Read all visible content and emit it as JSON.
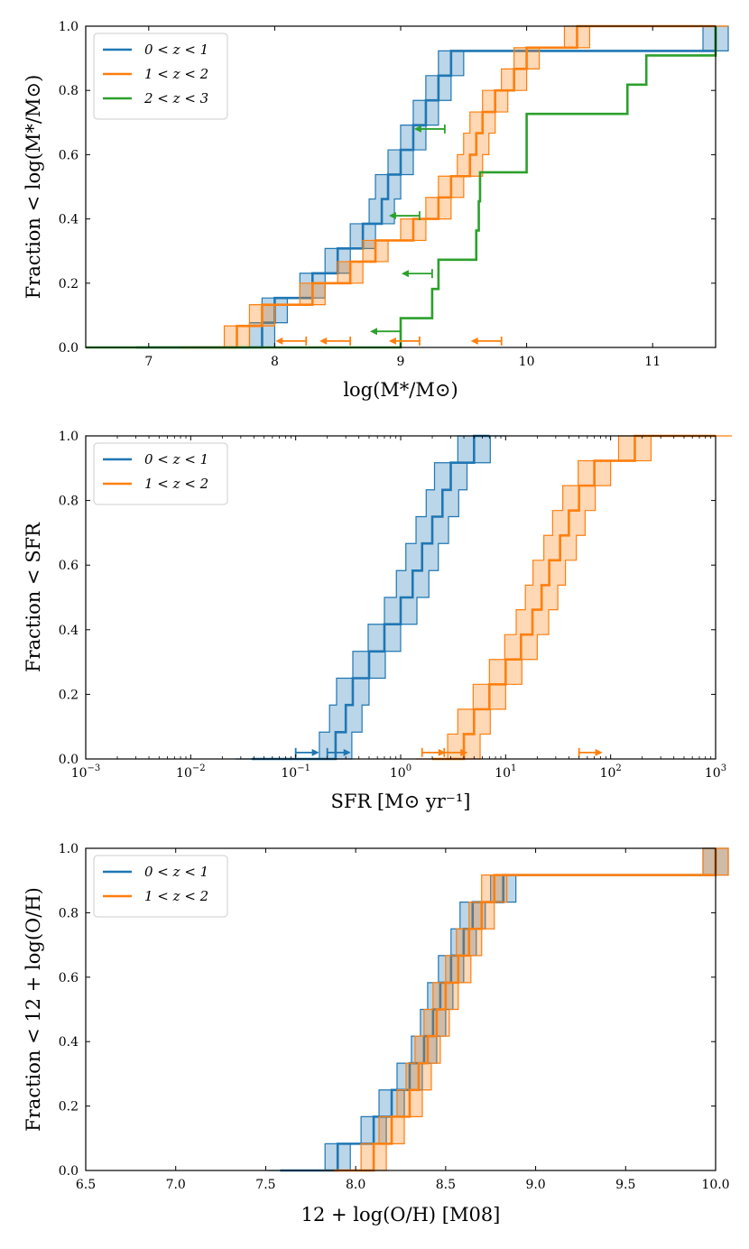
{
  "colors": {
    "blue": "#1f77b4",
    "orange": "#ff7f0e",
    "green": "#2ca02c"
  },
  "chart_data": [
    {
      "type": "line",
      "subtype": "cumulative-step",
      "xlabel": "log(M*/M⊙)",
      "ylabel": "Fraction < log(M*/M⊙)",
      "xlim": [
        6.5,
        11.5
      ],
      "ylim": [
        0,
        1
      ],
      "xticks": [
        "7",
        "8",
        "9",
        "10",
        "11"
      ],
      "yticks": [
        "0.0",
        "0.2",
        "0.4",
        "0.6",
        "0.8",
        "1.0"
      ],
      "legend_position": "top-left",
      "series": [
        {
          "name": "0 < z < 1",
          "color": "#1f77b4",
          "band": true,
          "x": [
            6.9,
            7.9,
            8.0,
            8.3,
            8.5,
            8.7,
            8.85,
            8.9,
            9.0,
            9.1,
            9.2,
            9.3,
            9.4,
            11.5
          ],
          "y": [
            0.0,
            0.077,
            0.154,
            0.231,
            0.308,
            0.385,
            0.462,
            0.538,
            0.615,
            0.692,
            0.769,
            0.846,
            0.923,
            1.0
          ]
        },
        {
          "name": "1 < z < 2",
          "color": "#ff7f0e",
          "band": true,
          "x": [
            7.25,
            7.7,
            7.9,
            8.3,
            8.6,
            8.8,
            9.1,
            9.3,
            9.4,
            9.55,
            9.6,
            9.65,
            9.75,
            9.9,
            10.0,
            10.2,
            10.4,
            11.5
          ],
          "y": [
            0.0,
            0.067,
            0.133,
            0.2,
            0.267,
            0.333,
            0.4,
            0.467,
            0.533,
            0.6,
            0.667,
            0.733,
            0.8,
            0.867,
            0.933,
            0.933,
            1.0,
            1.0
          ]
        },
        {
          "name": "2 < z < 3",
          "color": "#2ca02c",
          "band": false,
          "x": [
            6.5,
            9.0,
            9.25,
            9.3,
            9.6,
            9.62,
            9.63,
            10.0,
            10.8,
            10.95,
            11.5
          ],
          "y": [
            0.0,
            0.091,
            0.182,
            0.273,
            0.364,
            0.455,
            0.545,
            0.727,
            0.818,
            0.909,
            1.0
          ]
        }
      ],
      "upper_limits": [
        {
          "color": "#ff7f0e",
          "x": [
            8.25,
            8.6,
            9.15,
            9.8
          ],
          "y": 0.02
        },
        {
          "color": "#2ca02c",
          "x": [
            9.0,
            9.25,
            9.15,
            9.35
          ],
          "y_values": [
            0.05,
            0.23,
            0.41,
            0.68
          ]
        }
      ]
    },
    {
      "type": "line",
      "subtype": "cumulative-step",
      "xlabel": "SFR [M⊙ yr⁻¹]",
      "ylabel": "Fraction < SFR",
      "xscale": "log",
      "xlim": [
        0.001,
        1000
      ],
      "ylim": [
        0,
        1
      ],
      "xticks": [
        "10",
        "10",
        "10",
        "10",
        "10",
        "10",
        "10"
      ],
      "xtick_exponents": [
        "−3",
        "−2",
        "−1",
        "0",
        "1",
        "2",
        "3"
      ],
      "yticks": [
        "0.0",
        "0.2",
        "0.4",
        "0.6",
        "0.8",
        "1.0"
      ],
      "legend_position": "top-left",
      "series": [
        {
          "name": "0 < z < 1",
          "color": "#1f77b4",
          "band": true,
          "x": [
            0.038,
            0.24,
            0.3,
            0.35,
            0.5,
            0.7,
            1.0,
            1.3,
            1.6,
            2.0,
            2.5,
            3.0,
            3.5,
            5.0,
            7.0
          ],
          "y": [
            0.0,
            0.083,
            0.167,
            0.25,
            0.333,
            0.417,
            0.5,
            0.583,
            0.667,
            0.75,
            0.833,
            0.917,
            0.917,
            1.0,
            1.0
          ]
        },
        {
          "name": "1 < z < 2",
          "color": "#ff7f0e",
          "band": true,
          "x": [
            2.0,
            4.0,
            5.0,
            7.0,
            10.0,
            14.0,
            18.0,
            22.0,
            26.0,
            33.0,
            40.0,
            50.0,
            70.0,
            100.0,
            170.0,
            1000.0
          ],
          "y": [
            0.0,
            0.077,
            0.154,
            0.231,
            0.308,
            0.385,
            0.462,
            0.538,
            0.615,
            0.692,
            0.769,
            0.846,
            0.923,
            0.923,
            1.0,
            1.0
          ]
        }
      ],
      "lower_limits": [
        {
          "color": "#1f77b4",
          "x": [
            0.1,
            0.2
          ],
          "y": 0.02
        },
        {
          "color": "#ff7f0e",
          "x": [
            1.6,
            2.6,
            50.0
          ],
          "y": 0.02
        }
      ]
    },
    {
      "type": "line",
      "subtype": "cumulative-step",
      "xlabel": "12 + log(O/H) [M08]",
      "ylabel": "Fraction < 12 + log(O/H)",
      "xlim": [
        6.5,
        10.0
      ],
      "ylim": [
        0,
        1
      ],
      "xticks": [
        "6.5",
        "7.0",
        "7.5",
        "8.0",
        "8.5",
        "9.0",
        "9.5",
        "10.0"
      ],
      "yticks": [
        "0.0",
        "0.2",
        "0.4",
        "0.6",
        "0.8",
        "1.0"
      ],
      "legend_position": "top-left",
      "series": [
        {
          "name": "0 < z < 1",
          "color": "#1f77b4",
          "band": true,
          "x": [
            7.58,
            7.9,
            8.1,
            8.2,
            8.3,
            8.38,
            8.43,
            8.47,
            8.53,
            8.6,
            8.65,
            8.82,
            10.0
          ],
          "y": [
            0.0,
            0.083,
            0.167,
            0.25,
            0.333,
            0.417,
            0.5,
            0.583,
            0.667,
            0.75,
            0.833,
            0.917,
            1.0
          ]
        },
        {
          "name": "1 < z < 2",
          "color": "#ff7f0e",
          "band": true,
          "x": [
            7.88,
            8.1,
            8.2,
            8.3,
            8.35,
            8.4,
            8.45,
            8.5,
            8.57,
            8.63,
            8.7,
            8.77,
            10.0
          ],
          "y": [
            0.0,
            0.083,
            0.167,
            0.25,
            0.333,
            0.417,
            0.5,
            0.583,
            0.667,
            0.75,
            0.833,
            0.917,
            1.0
          ]
        }
      ]
    }
  ]
}
